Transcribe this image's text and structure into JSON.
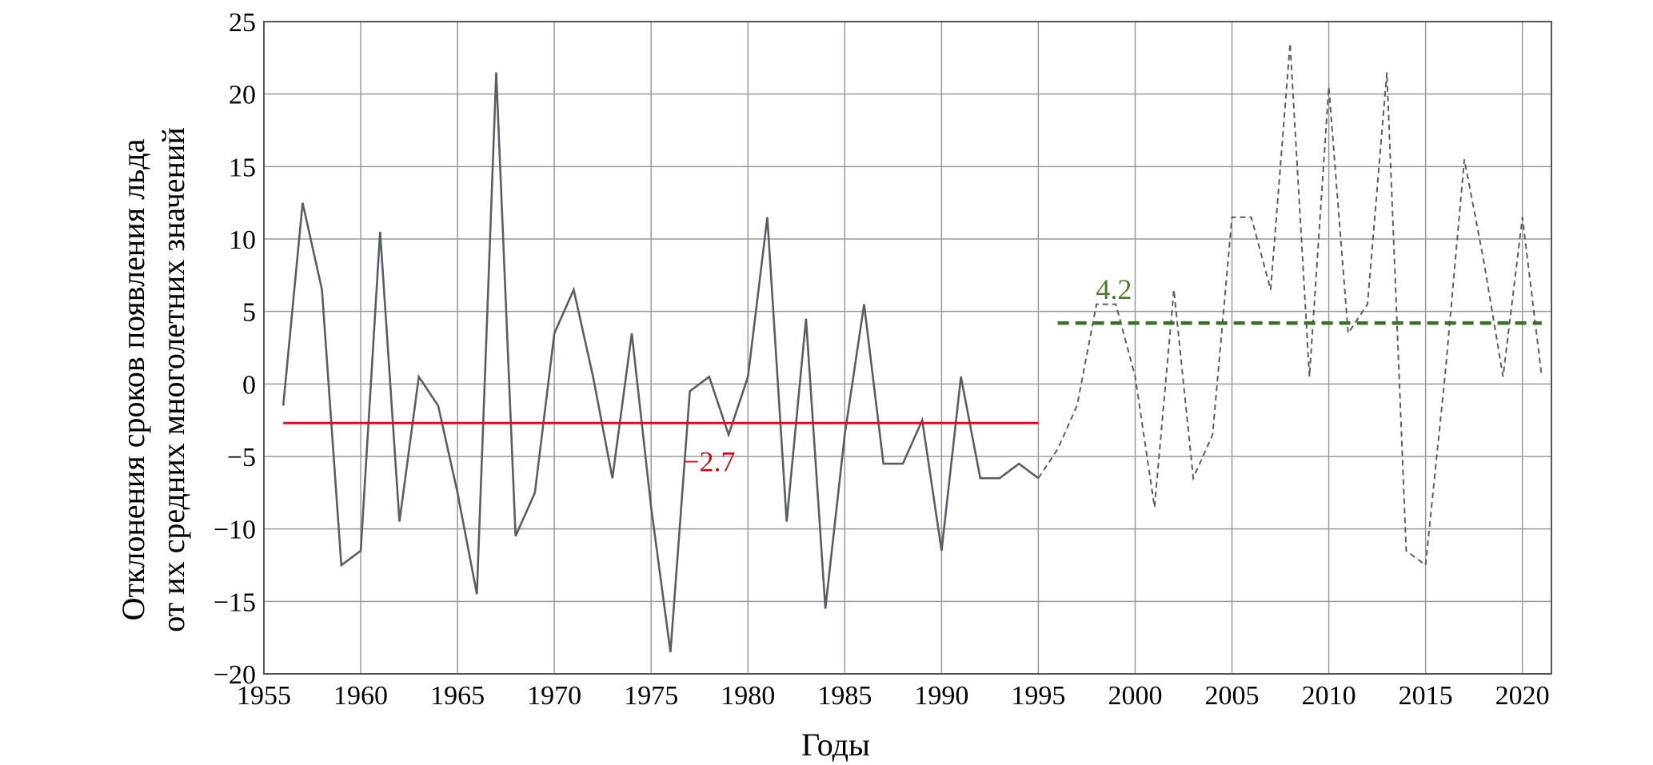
{
  "chart_data": {
    "type": "line",
    "xlabel": "Годы",
    "ylabel_lines": [
      "Отклонения сроков появления льда",
      "от их средних многолетних значений"
    ],
    "xlim": [
      1955,
      2021.5
    ],
    "ylim": [
      -20,
      25
    ],
    "xticks": [
      1955,
      1960,
      1965,
      1970,
      1975,
      1980,
      1985,
      1990,
      1995,
      2000,
      2005,
      2010,
      2015,
      2020
    ],
    "yticks": [
      -20,
      -15,
      -10,
      -5,
      0,
      5,
      10,
      15,
      20,
      25
    ],
    "grid": true,
    "colors": {
      "series": "#5a5e63",
      "mean_early": "#d0141c",
      "mean_late": "#3c6e2a",
      "annot_early": "#c0121a",
      "annot_late": "#4a7a2a",
      "grid": "#9a9a9a"
    },
    "series": [
      {
        "style": "solid",
        "x": [
          1956,
          1957,
          1958,
          1959,
          1960,
          1961,
          1962,
          1963,
          1964,
          1965,
          1966,
          1967,
          1968,
          1969,
          1970,
          1971,
          1972,
          1973,
          1974,
          1975,
          1976,
          1977,
          1978,
          1979,
          1980,
          1981,
          1982,
          1983,
          1984,
          1985,
          1986,
          1987,
          1988,
          1989,
          1990,
          1991,
          1992,
          1993,
          1994,
          1995
        ],
        "y": [
          -1.5,
          12.5,
          6.5,
          -12.5,
          -11.5,
          10.5,
          -9.5,
          0.5,
          -1.5,
          -7.5,
          -14.5,
          21.5,
          -10.5,
          -7.5,
          3.5,
          6.5,
          0.5,
          -6.5,
          3.5,
          -8.5,
          -18.5,
          -0.5,
          0.5,
          -3.5,
          0.5,
          11.5,
          -9.5,
          4.5,
          -15.5,
          -3.5,
          5.5,
          -5.5,
          -5.5,
          -2.5,
          -11.5,
          0.5,
          -6.5,
          -6.5,
          -5.5,
          -6.5
        ]
      },
      {
        "style": "dashed",
        "x": [
          1995,
          1996,
          1997,
          1998,
          1999,
          2000,
          2001,
          2002,
          2003,
          2004,
          2005,
          2006,
          2007,
          2008,
          2009,
          2010,
          2011,
          2012,
          2013,
          2014,
          2015,
          2016,
          2017,
          2018,
          2019,
          2020,
          2021
        ],
        "y": [
          -6.5,
          -4.5,
          -1.5,
          5.5,
          5.5,
          0.5,
          -8.5,
          6.5,
          -6.5,
          -3.5,
          11.5,
          11.5,
          6.5,
          23.5,
          0.5,
          20.5,
          3.5,
          5.5,
          21.5,
          -11.5,
          -12.5,
          0.5,
          15.5,
          8.5,
          0.5,
          11.5,
          0.5
        ]
      }
    ],
    "mean_lines": [
      {
        "label": "−2.7",
        "value": -2.7,
        "x": [
          1956,
          1995
        ],
        "style": "solid"
      },
      {
        "label": "4.2",
        "value": 4.2,
        "x": [
          1996,
          2021
        ],
        "style": "dashed"
      }
    ]
  }
}
